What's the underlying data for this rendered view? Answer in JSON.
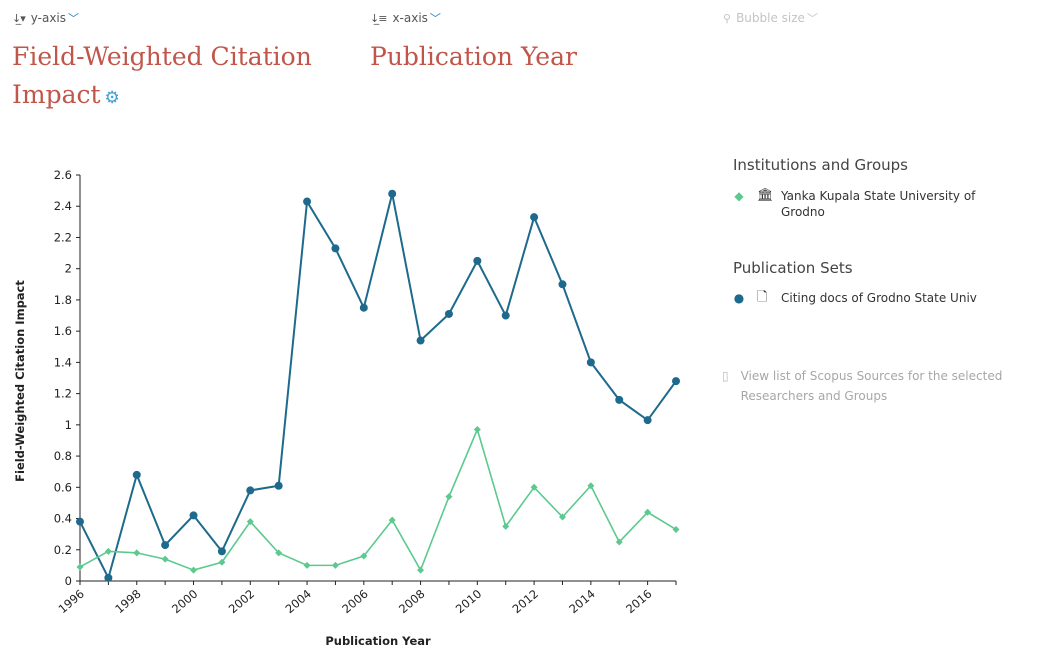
{
  "controls": {
    "y_axis_label": "y-axis",
    "x_axis_label": "x-axis",
    "bubble_label": "Bubble size",
    "y_metric": "Field-Weighted Citation Impact",
    "y_metric_line1": "Field-Weighted Citation",
    "y_metric_line2": "Impact",
    "x_metric": "Publication Year"
  },
  "legend": {
    "institutions_heading": "Institutions and Groups",
    "institution_name_line1": "Yanka Kupala State University of",
    "institution_name_line2": "Grodno",
    "publication_heading": "Publication Sets",
    "publication_name": "Citing docs of Grodno State Univ",
    "view_link_line1": "View list of Scopus Sources for the selected",
    "view_link_line2": "Researchers and Groups"
  },
  "colors": {
    "accent_title": "#c0564a",
    "series_dark": "#1e6a8c",
    "series_light": "#5cc98f",
    "link_blue": "#1f7fbf"
  },
  "chart_data": {
    "type": "line",
    "xlabel": "Publication Year",
    "ylabel": "Field-Weighted Citation Impact",
    "xlim": [
      1996,
      2017
    ],
    "ylim": [
      0,
      2.6
    ],
    "x_ticks": [
      1996,
      1998,
      2000,
      2002,
      2004,
      2006,
      2008,
      2010,
      2012,
      2014,
      2016
    ],
    "y_ticks": [
      "0",
      "0.2",
      "0.4",
      "0.6",
      "0.8",
      "1",
      "1.2",
      "1.4",
      "1.6",
      "1.8",
      "2",
      "2.2",
      "2.4",
      "2.6"
    ],
    "x": [
      1996,
      1997,
      1998,
      1999,
      2000,
      2001,
      2002,
      2003,
      2004,
      2005,
      2006,
      2007,
      2008,
      2009,
      2010,
      2011,
      2012,
      2013,
      2014,
      2015,
      2016,
      2017
    ],
    "series": [
      {
        "name": "Citing docs of Grodno State Univ",
        "color": "#1e6a8c",
        "marker": "circle",
        "values": [
          0.38,
          0.02,
          0.68,
          0.23,
          0.42,
          0.19,
          0.58,
          0.61,
          2.43,
          2.13,
          1.75,
          2.48,
          1.54,
          1.71,
          2.05,
          1.7,
          2.33,
          1.9,
          1.4,
          1.16,
          1.03,
          1.28
        ]
      },
      {
        "name": "Yanka Kupala State University of Grodno",
        "color": "#5cc98f",
        "marker": "diamond",
        "values": [
          0.09,
          0.19,
          0.18,
          0.14,
          0.07,
          0.12,
          0.38,
          0.18,
          0.1,
          0.1,
          0.16,
          0.39,
          0.07,
          0.54,
          0.97,
          0.35,
          0.6,
          0.41,
          0.61,
          0.25,
          0.44,
          0.33
        ]
      }
    ]
  }
}
